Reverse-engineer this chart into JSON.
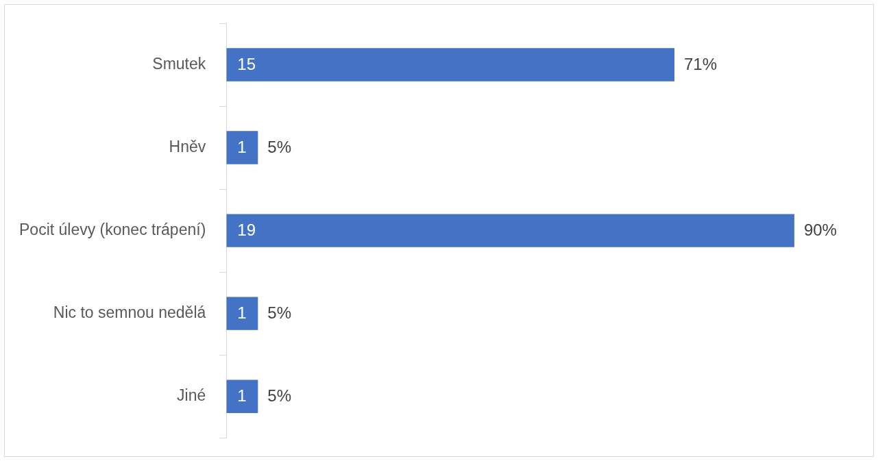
{
  "chart_data": {
    "type": "bar",
    "orientation": "horizontal",
    "categories": [
      "Smutek",
      "Hněv",
      "Pocit úlevy (konec trápení)",
      "Nic to semnou nedělá",
      "Jiné"
    ],
    "values": [
      71,
      5,
      90,
      5,
      5
    ],
    "color": "#4472c4",
    "value_labels": [
      "71%",
      "5%",
      "90%",
      "5%",
      "5%"
    ],
    "annotations": [
      "15",
      "1",
      "19",
      "1",
      "1"
    ],
    "legend": false
  }
}
